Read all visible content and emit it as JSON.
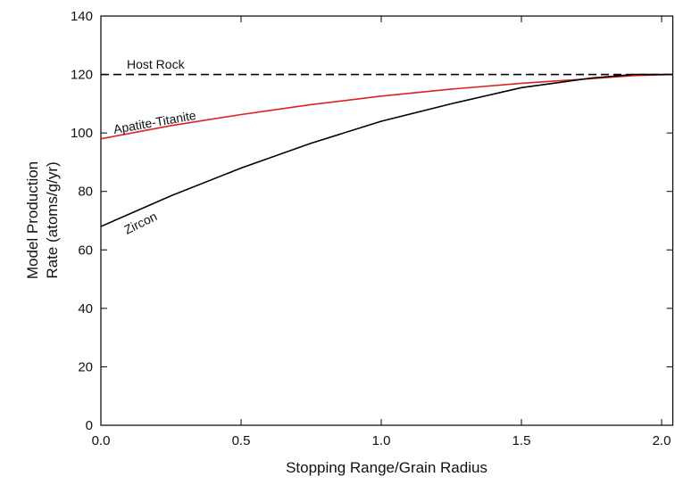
{
  "chart_data": {
    "type": "line",
    "xlabel": "Stopping Range/Grain Radius",
    "ylabel": [
      "Model Production",
      "Rate (atoms/g/yr)"
    ],
    "x": [
      0,
      0.25,
      0.5,
      0.75,
      1.0,
      1.25,
      1.5,
      1.75,
      1.9,
      2.04
    ],
    "series": [
      {
        "name": "Host Rock",
        "color": "#000000",
        "dash": true,
        "values": [
          120,
          120,
          120,
          120,
          120,
          120,
          120,
          120,
          120,
          120
        ]
      },
      {
        "name": "Apatite-Titanite",
        "color": "#e02020",
        "values": [
          98,
          102.5,
          106.3,
          109.7,
          112.6,
          115,
          117,
          118.6,
          119.6,
          120
        ]
      },
      {
        "name": "Zircon",
        "color": "#000000",
        "values": [
          68,
          78.5,
          88,
          96.5,
          104,
          110,
          115.5,
          118.8,
          120,
          120
        ]
      }
    ],
    "xlim": [
      0,
      2.04
    ],
    "ylim": [
      0,
      140
    ],
    "xticks": [
      {
        "value": 0,
        "label": "0.0"
      },
      {
        "value": 0.5,
        "label": "0.5"
      },
      {
        "value": 1.0,
        "label": "1.0"
      },
      {
        "value": 1.5,
        "label": "1.5"
      },
      {
        "value": 2.0,
        "label": "2.0"
      }
    ],
    "yticks": [
      0,
      20,
      40,
      60,
      80,
      100,
      120,
      140
    ]
  }
}
